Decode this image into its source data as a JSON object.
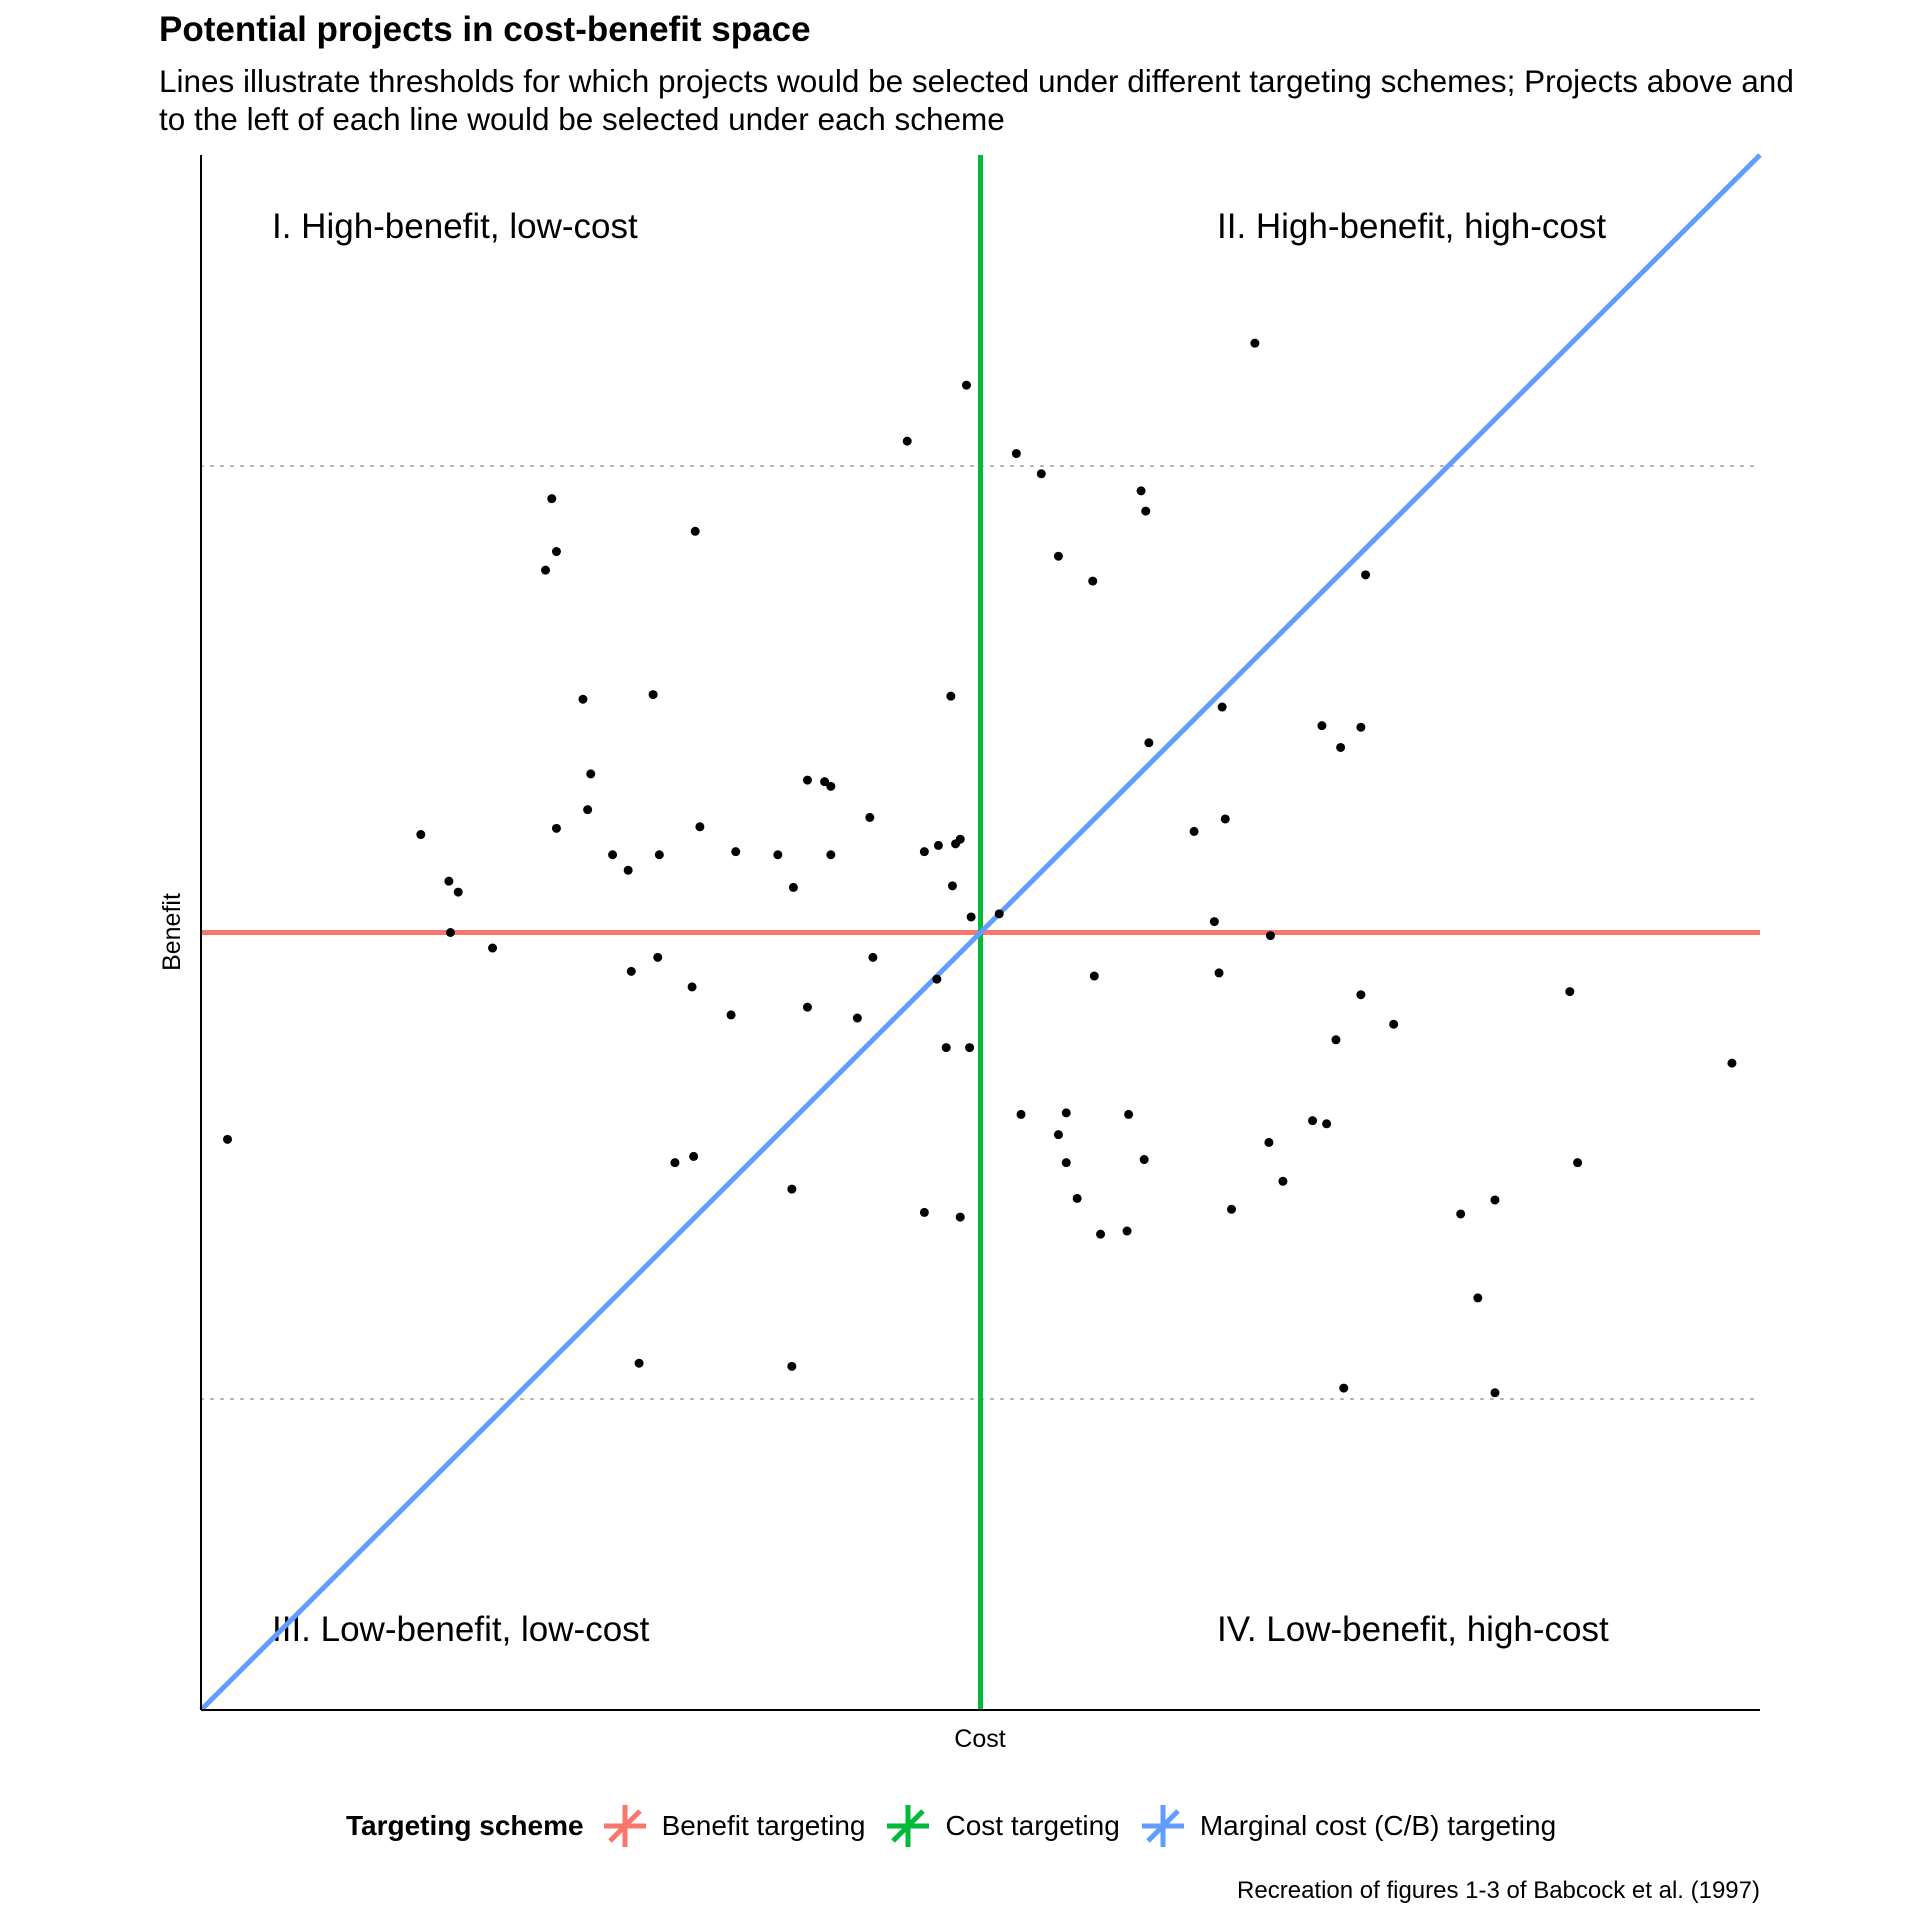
{
  "title": "Potential projects in cost-benefit space",
  "subtitle": "Lines illustrate thresholds for which projects would be selected under different targeting schemes; Projects above and\nto the left of each line would be selected under each scheme",
  "caption": "Recreation of figures 1-3 of Babcock et al. (1997)",
  "legend": {
    "title": "Targeting scheme",
    "items": [
      {
        "label": "Benefit targeting",
        "color": "#F8766D",
        "shape": "asterisk"
      },
      {
        "label": "Cost targeting",
        "color": "#00BA38",
        "shape": "asterisk"
      },
      {
        "label": "Marginal cost (C/B) targeting",
        "color": "#619CFF",
        "shape": "asterisk"
      }
    ]
  },
  "quadrants": {
    "q1": "I. High-benefit, low-cost",
    "q2": "II. High-benefit, high-cost",
    "q3": "III. Low-benefit, low-cost",
    "q4": "IV. Low-benefit, high-cost"
  },
  "chart_data": {
    "type": "scatter",
    "xlabel": "Cost",
    "ylabel": "Benefit",
    "xlim": [
      0,
      100
    ],
    "ylim": [
      0,
      100
    ],
    "tick_labels": false,
    "grid": "dotted horizontal lines at benefit 20 and 80",
    "legend_position": "bottom",
    "thresholds": [
      {
        "scheme": "Benefit targeting",
        "type": "horizontal",
        "value": 50
      },
      {
        "scheme": "Cost targeting",
        "type": "vertical",
        "value": 50
      },
      {
        "scheme": "Marginal cost (C/B) targeting",
        "type": "diagonal",
        "from": [
          0,
          0
        ],
        "to": [
          100,
          100
        ]
      }
    ],
    "points": [
      [
        1.7,
        36.7
      ],
      [
        14.1,
        56.3
      ],
      [
        15.9,
        53.3
      ],
      [
        16.5,
        52.6
      ],
      [
        16.0,
        50.0
      ],
      [
        18.7,
        49.0
      ],
      [
        22.1,
        73.3
      ],
      [
        22.5,
        77.9
      ],
      [
        22.8,
        74.5
      ],
      [
        22.8,
        56.7
      ],
      [
        24.5,
        65.0
      ],
      [
        25.0,
        60.2
      ],
      [
        24.8,
        57.9
      ],
      [
        26.4,
        55.0
      ],
      [
        27.4,
        54.0
      ],
      [
        27.6,
        47.5
      ],
      [
        29.0,
        65.3
      ],
      [
        29.4,
        55.0
      ],
      [
        29.3,
        48.4
      ],
      [
        30.4,
        35.2
      ],
      [
        31.6,
        35.6
      ],
      [
        28.1,
        22.3
      ],
      [
        31.7,
        75.8
      ],
      [
        32.0,
        56.8
      ],
      [
        31.5,
        46.5
      ],
      [
        34.0,
        44.7
      ],
      [
        34.3,
        55.2
      ],
      [
        37.0,
        55.0
      ],
      [
        38.0,
        52.9
      ],
      [
        37.9,
        33.5
      ],
      [
        37.9,
        22.1
      ],
      [
        38.9,
        59.8
      ],
      [
        38.9,
        45.2
      ],
      [
        40.0,
        59.7
      ],
      [
        40.4,
        59.4
      ],
      [
        40.4,
        55.0
      ],
      [
        42.1,
        44.5
      ],
      [
        42.9,
        57.4
      ],
      [
        43.1,
        48.4
      ],
      [
        45.3,
        81.6
      ],
      [
        46.4,
        55.2
      ],
      [
        46.4,
        32.0
      ],
      [
        47.3,
        55.6
      ],
      [
        47.2,
        47.0
      ],
      [
        47.8,
        42.6
      ],
      [
        48.1,
        65.2
      ],
      [
        48.2,
        53.0
      ],
      [
        48.4,
        55.7
      ],
      [
        48.7,
        56.0
      ],
      [
        48.7,
        31.7
      ],
      [
        49.1,
        85.2
      ],
      [
        49.4,
        51.0
      ],
      [
        49.3,
        42.6
      ],
      [
        51.2,
        51.2
      ],
      [
        52.3,
        80.8
      ],
      [
        52.6,
        38.3
      ],
      [
        53.9,
        79.5
      ],
      [
        55.0,
        74.2
      ],
      [
        55.0,
        37.0
      ],
      [
        55.5,
        38.4
      ],
      [
        55.5,
        35.2
      ],
      [
        56.2,
        32.9
      ],
      [
        57.2,
        72.6
      ],
      [
        57.3,
        47.2
      ],
      [
        57.7,
        30.6
      ],
      [
        59.5,
        38.3
      ],
      [
        59.4,
        30.8
      ],
      [
        60.3,
        78.4
      ],
      [
        60.6,
        77.1
      ],
      [
        60.5,
        35.4
      ],
      [
        60.8,
        62.2
      ],
      [
        63.7,
        56.5
      ],
      [
        65.0,
        50.7
      ],
      [
        65.3,
        47.4
      ],
      [
        65.5,
        64.5
      ],
      [
        65.7,
        57.3
      ],
      [
        66.1,
        32.2
      ],
      [
        68.6,
        49.8
      ],
      [
        68.5,
        36.5
      ],
      [
        69.4,
        34.0
      ],
      [
        71.3,
        37.9
      ],
      [
        71.9,
        63.3
      ],
      [
        72.2,
        37.7
      ],
      [
        72.8,
        43.1
      ],
      [
        73.1,
        61.9
      ],
      [
        73.3,
        20.7
      ],
      [
        74.4,
        63.2
      ],
      [
        74.4,
        46.0
      ],
      [
        74.7,
        73.0
      ],
      [
        76.5,
        44.1
      ],
      [
        80.8,
        31.9
      ],
      [
        81.9,
        26.5
      ],
      [
        83.0,
        32.8
      ],
      [
        83.0,
        20.4
      ],
      [
        87.8,
        46.2
      ],
      [
        88.3,
        35.2
      ],
      [
        98.2,
        41.6
      ],
      [
        67.6,
        87.9
      ]
    ]
  }
}
